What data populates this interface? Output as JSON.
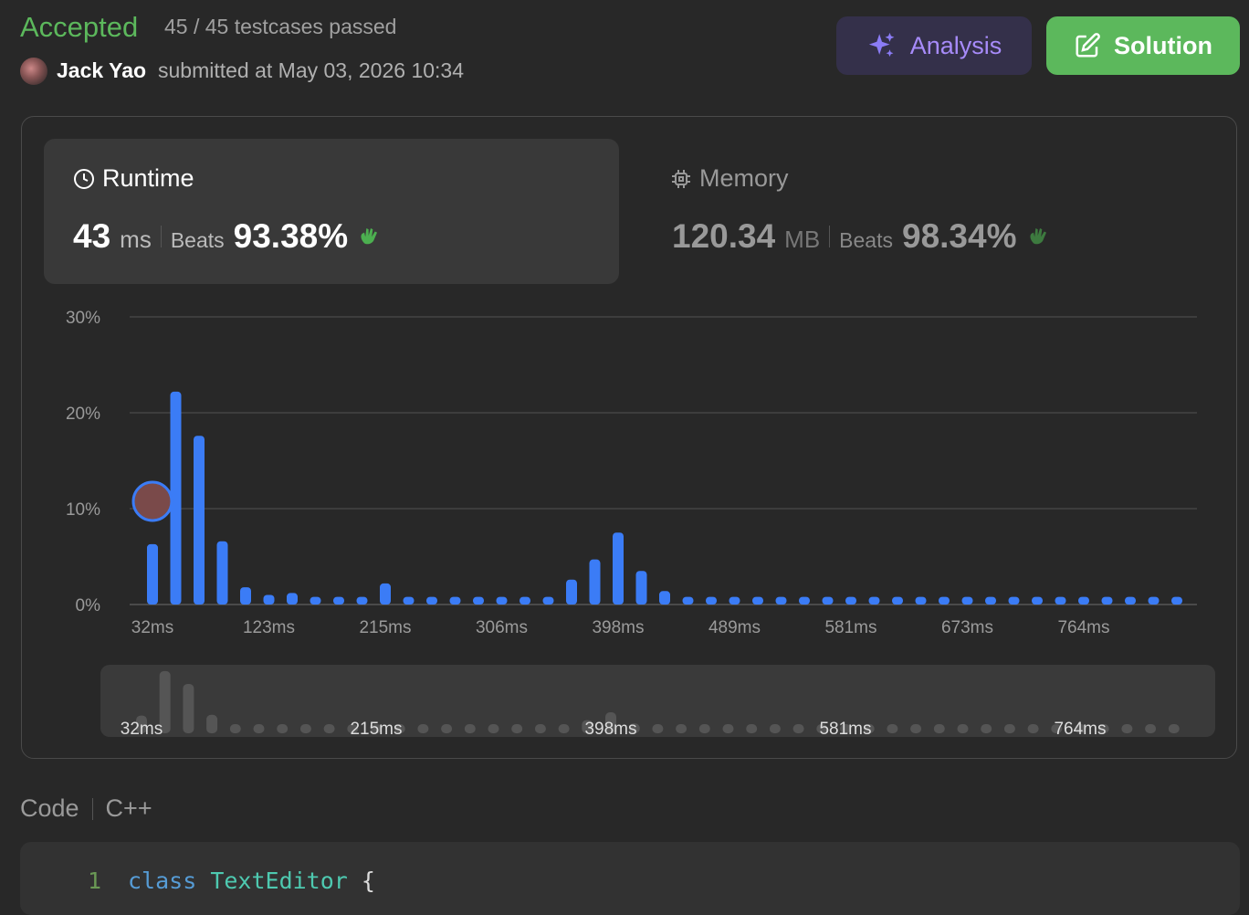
{
  "header": {
    "status": "Accepted",
    "testcases": "45 / 45 testcases passed",
    "user": "Jack Yao",
    "submitted": "submitted at May 03, 2026 10:34",
    "buttons": [
      "Analysis",
      "Solution"
    ]
  },
  "runtime": {
    "label": "Runtime",
    "value": "43",
    "unit": "ms",
    "beats_label": "Beats",
    "beats": "93.38%"
  },
  "memory": {
    "label": "Memory",
    "value": "120.34",
    "unit": "MB",
    "beats_label": "Beats",
    "beats": "98.34%"
  },
  "chart_data": {
    "type": "bar",
    "color": "#3b7cf6",
    "categories": [
      "32ms",
      null,
      null,
      null,
      null,
      "123ms",
      null,
      null,
      null,
      null,
      "215ms",
      null,
      null,
      null,
      null,
      "306ms",
      null,
      null,
      null,
      null,
      "398ms",
      null,
      null,
      null,
      null,
      "489ms",
      null,
      null,
      null,
      null,
      "581ms",
      null,
      null,
      null,
      null,
      "673ms",
      null,
      null,
      null,
      null,
      "764ms",
      null,
      null,
      null,
      null
    ],
    "values": [
      6.3,
      22.2,
      17.6,
      6.6,
      1.8,
      1.0,
      1.2,
      0.8,
      0.8,
      0.8,
      2.2,
      0.8,
      0.8,
      0.8,
      0.8,
      0.8,
      0.8,
      0.8,
      2.6,
      4.7,
      7.5,
      3.5,
      1.4,
      0.8,
      0.8,
      0.8,
      0.8,
      0.8,
      0.8,
      0.8,
      0.8,
      0.8,
      0.8,
      0.8,
      0.8,
      0.8,
      0.8,
      0.8,
      0.8,
      0.8,
      0.8,
      0.8,
      0.8,
      0.8,
      0.8
    ],
    "ylim": [
      0,
      30
    ],
    "yticks": [
      {
        "value": 0,
        "label": "0%"
      },
      {
        "value": 10,
        "label": "10%"
      },
      {
        "value": 20,
        "label": "20%"
      },
      {
        "value": 30,
        "label": "30%"
      }
    ],
    "grid": true
  },
  "code": {
    "language_label": "Code",
    "language": "C++",
    "lines": [
      {
        "number": "1",
        "text": "class TextEditor {"
      }
    ]
  }
}
